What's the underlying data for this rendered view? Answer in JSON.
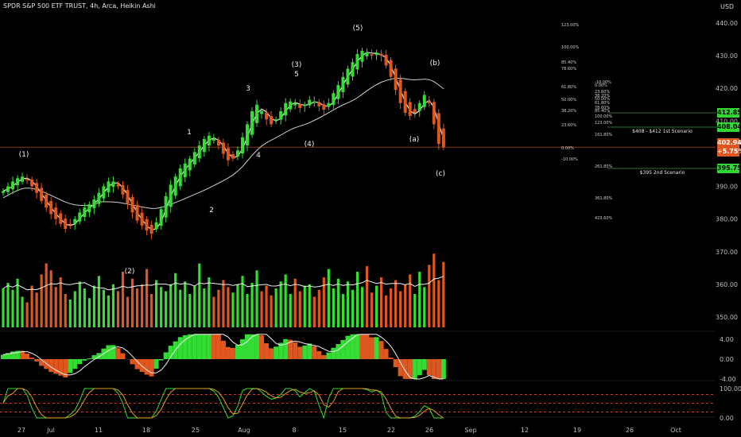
{
  "header": {
    "title": "SPDR S&P 500 ETF TRUST, 4h, Arca, Heikin Ashi",
    "currency": "USD"
  },
  "colors": {
    "up": "#33dd33",
    "down": "#e0561f",
    "ma": "#f2f2f2",
    "price_line": "#8a3a16",
    "scenario_line": "#2e6e2e",
    "ref_line": "#ff4d4d"
  },
  "price_axis": {
    "ticks": [
      "440.00",
      "430.00",
      "420.00",
      "410.00",
      "390.00",
      "380.00",
      "370.00",
      "360.00",
      "350.00"
    ],
    "markers": [
      {
        "label": "412.85",
        "kind": "scenario"
      },
      {
        "label": "408.04",
        "kind": "scenario"
      },
      {
        "label": "402.94",
        "sublabel": "+5.75%",
        "kind": "last"
      },
      {
        "label": "395.75",
        "kind": "scenario"
      }
    ]
  },
  "fib_levels": [
    "123.00%",
    "100.00%",
    "85.40%",
    "78.60%",
    "61.80%",
    "50.00%",
    "38.20%",
    "23.60%",
    "0.00%",
    "-10.00%"
  ],
  "fib_levels_2": [
    "-10.00%",
    "0.00%",
    "23.60%",
    "38.20%",
    "50.00%",
    "61.80%",
    "78.60%",
    "85.40%",
    "100.00%",
    "123.00%",
    "161.80%",
    "261.80%",
    "361.80%",
    "423.60%"
  ],
  "scenarios": {
    "first": "$408 - $412 1st Scenario",
    "second": "$395 2nd Scenario"
  },
  "wave_labels": [
    "(1)",
    "(2)",
    "1",
    "2",
    "3",
    "4",
    "(3)",
    "5",
    "(4)",
    "(5)",
    "(a)",
    "(b)",
    "(c)"
  ],
  "oscillator_axis": [
    "4.00",
    "0.00",
    "-4.00"
  ],
  "stoch_axis": [
    "100.00",
    "0.00"
  ],
  "time_axis": [
    "27",
    "Jul",
    "11",
    "18",
    "25",
    "Aug",
    "8",
    "15",
    "22",
    "26",
    "Sep",
    "12",
    "19",
    "26",
    "Oct"
  ],
  "chart_data": {
    "type": "candlestick",
    "title": "SPDR S&P 500 ETF TRUST, 4h, Arca, Heikin Ashi",
    "ylim": [
      345,
      445
    ],
    "price_close": [
      388.5,
      390,
      391.5,
      392.5,
      393,
      392,
      390,
      388,
      385.5,
      383.5,
      381.5,
      380,
      378.5,
      377,
      378.5,
      380,
      382,
      383.5,
      384.5,
      386,
      388,
      390,
      391.5,
      391.5,
      390,
      387.5,
      384.5,
      382,
      379.5,
      378,
      376.5,
      375.5,
      379,
      383,
      387,
      390.5,
      393,
      395.5,
      397,
      398.5,
      400.5,
      402.5,
      404.5,
      405.5,
      404.5,
      402.5,
      400,
      398,
      398.5,
      401,
      405,
      409,
      413,
      415,
      413,
      410.5,
      409,
      410.5,
      413,
      415.5,
      416,
      415.5,
      414,
      415,
      416.5,
      416,
      414.5,
      413.5,
      415.5,
      418.5,
      421,
      423.5,
      426,
      428,
      430.5,
      431.5,
      431,
      430,
      431,
      430,
      427,
      423.5,
      419.5,
      415.5,
      412.5,
      411.5,
      412.5,
      415.5,
      418,
      415.5,
      409,
      403,
      402
    ],
    "volume": [
      28,
      32,
      27,
      35,
      22,
      18,
      30,
      25,
      38,
      46,
      41,
      29,
      36,
      24,
      20,
      26,
      33,
      28,
      21,
      30,
      37,
      27,
      23,
      31,
      26,
      40,
      22,
      35,
      28,
      31,
      42,
      24,
      34,
      29,
      26,
      31,
      39,
      27,
      33,
      24,
      30,
      46,
      28,
      36,
      22,
      27,
      34,
      29,
      25,
      31,
      37,
      24,
      32,
      41,
      26,
      30,
      23,
      28,
      33,
      38,
      24,
      35,
      26,
      30,
      31,
      22,
      27,
      36,
      42,
      28,
      35,
      24,
      33,
      27,
      40,
      29,
      44,
      25,
      30,
      36,
      23,
      28,
      34,
      26,
      31,
      38,
      24,
      40,
      29,
      45,
      53,
      34,
      47
    ],
    "oscillator_range": [
      -4,
      5
    ],
    "stochastic_range": [
      0,
      100
    ],
    "stochastic_refs": [
      80,
      50,
      20
    ]
  }
}
